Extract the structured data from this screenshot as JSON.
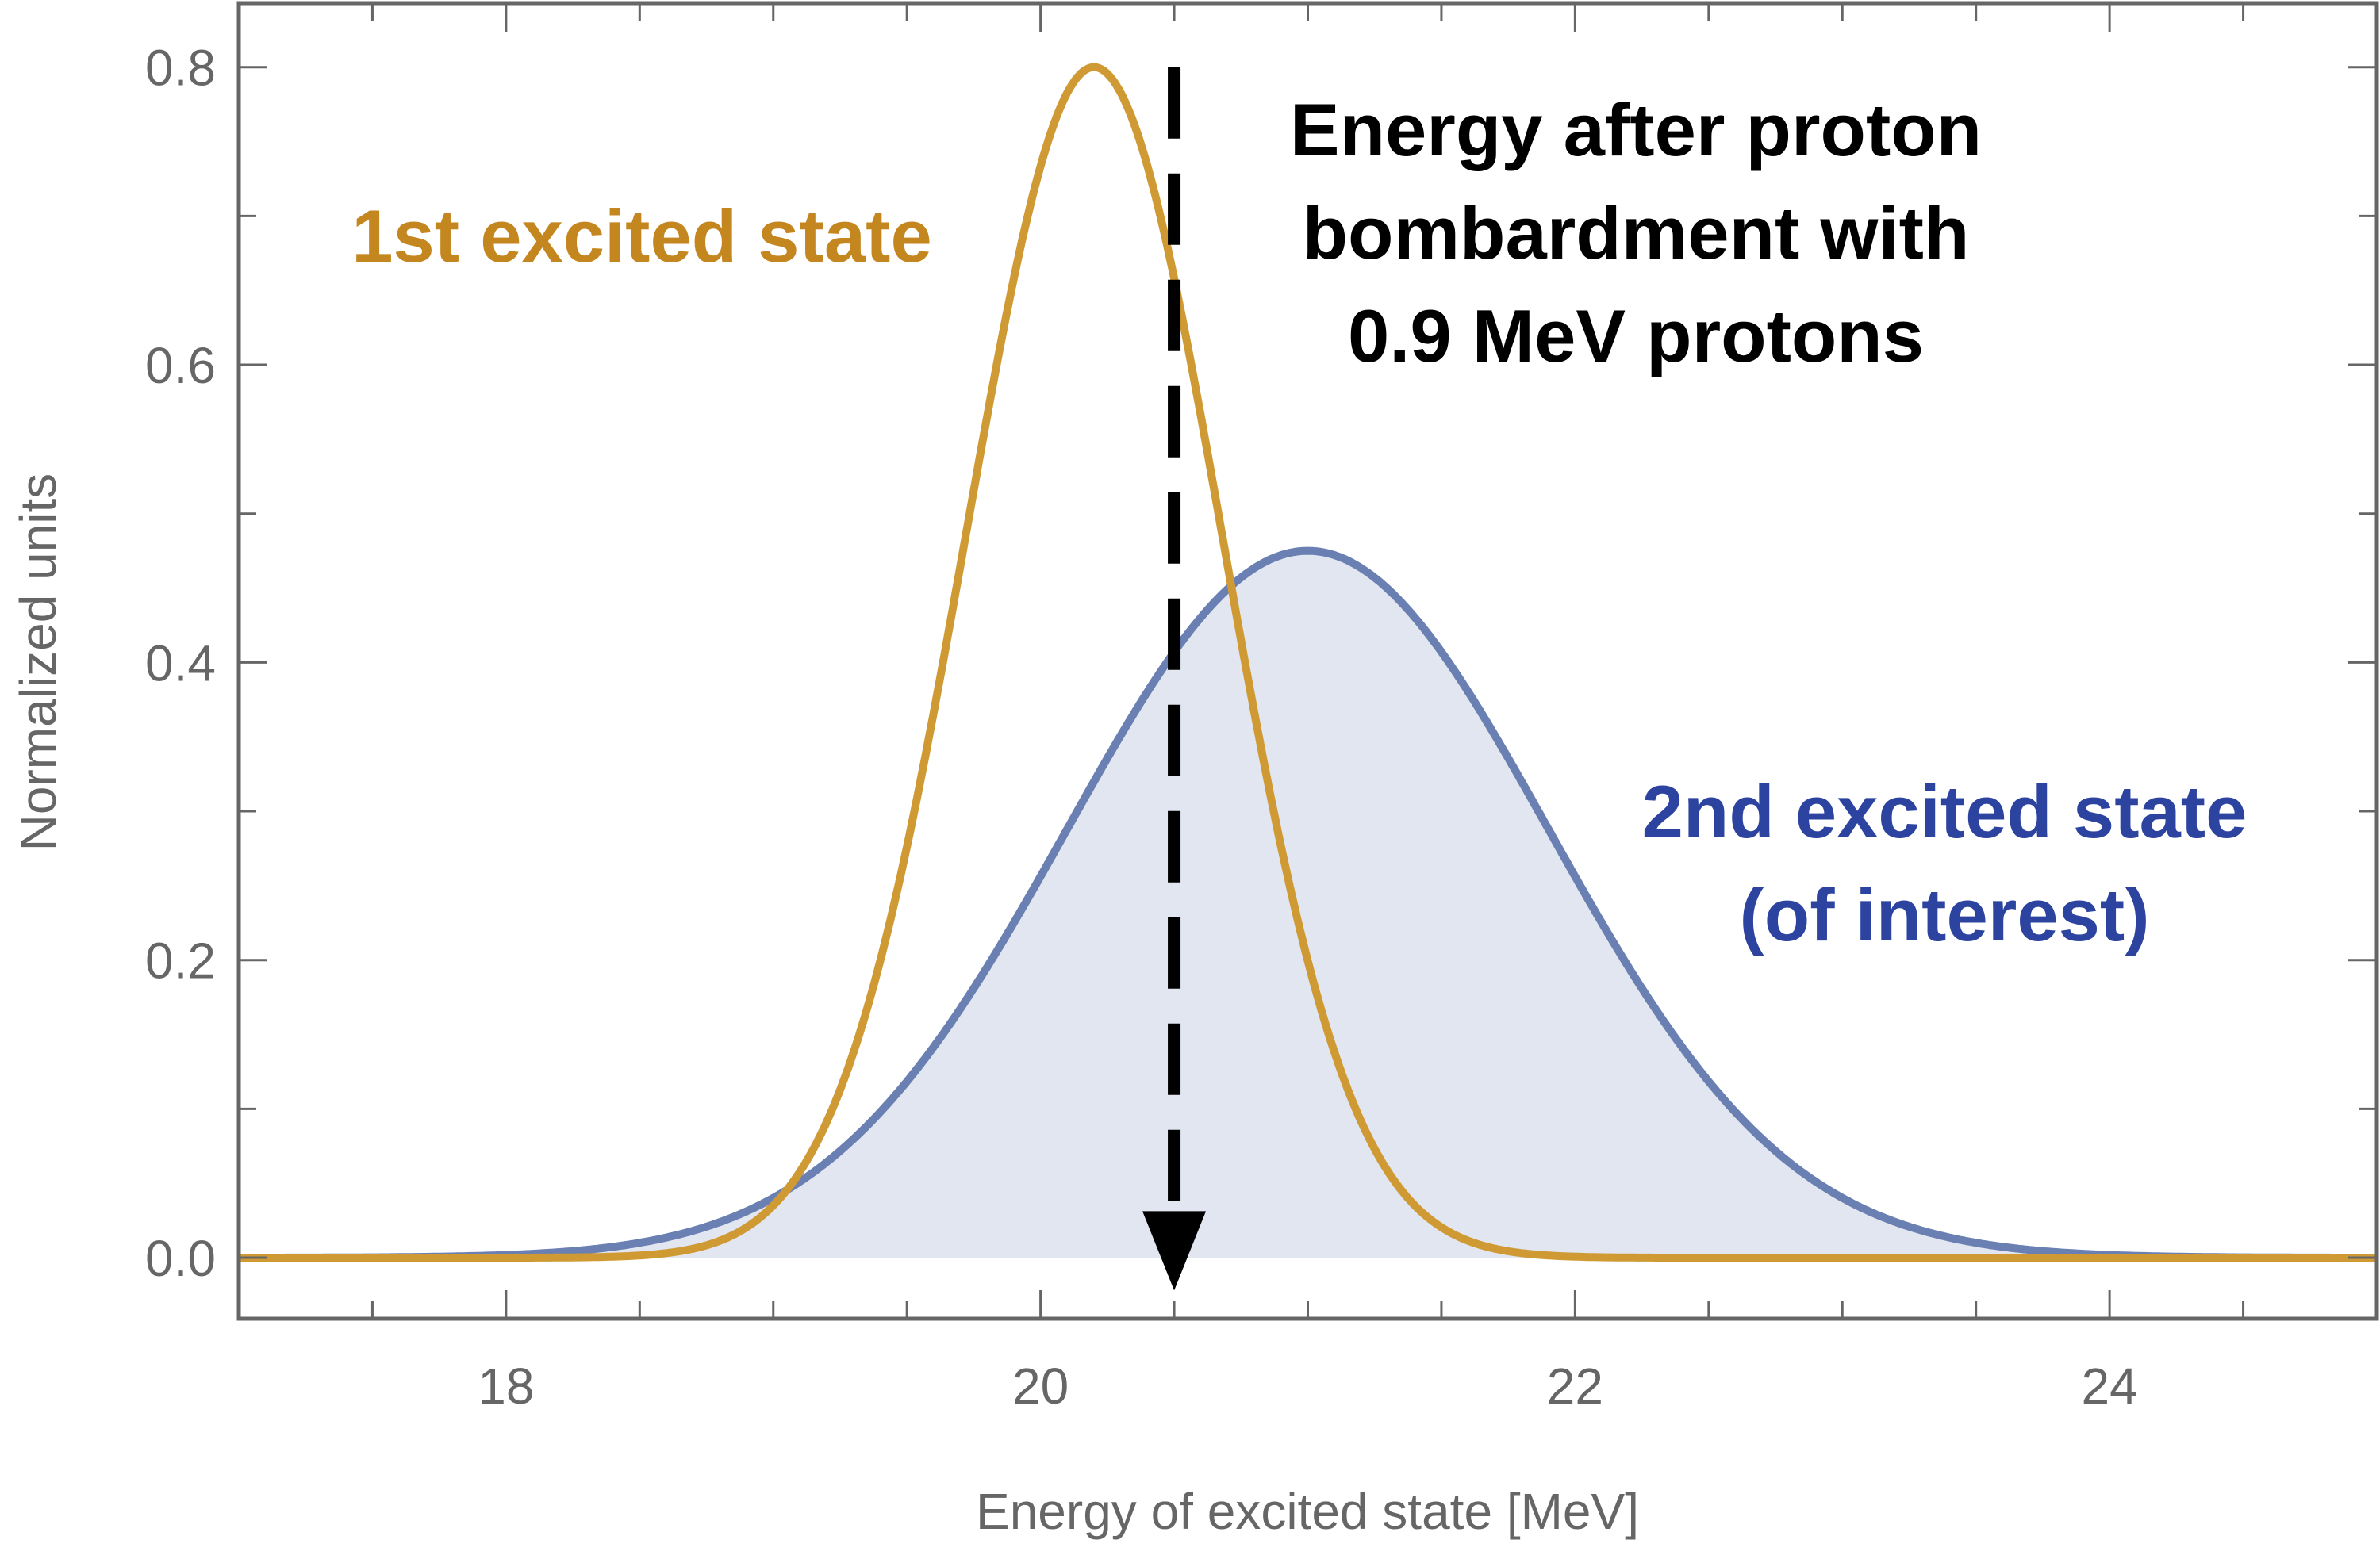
{
  "chart_data": {
    "type": "line",
    "title": "",
    "xlabel": "Energy of excited state [MeV]",
    "ylabel": "Normalized units",
    "xlim": [
      17,
      25
    ],
    "ylim": [
      -0.041,
      0.843
    ],
    "x_ticks": [
      18,
      20,
      22,
      24
    ],
    "x_tick_labels": [
      "18",
      "20",
      "22",
      "24"
    ],
    "y_ticks": [
      0.0,
      0.2,
      0.4,
      0.6,
      0.8
    ],
    "y_tick_labels": [
      "0.0",
      "0.2",
      "0.4",
      "0.6",
      "0.8"
    ],
    "grid": false,
    "legend": "none",
    "series": [
      {
        "name": "1st excited state",
        "shape": "gaussian",
        "center": 20.2,
        "peak": 0.8,
        "sigma": 0.48,
        "color": "#CF9A33",
        "filled": false
      },
      {
        "name": "2nd excited state (of interest)",
        "shape": "gaussian",
        "center": 21.0,
        "peak": 0.475,
        "sigma": 0.9,
        "color": "#6A7FB2",
        "fill_color": "#E1E6F0",
        "filled": true
      }
    ],
    "marker_line": {
      "x": 20.5,
      "style": "dashed-arrow-down",
      "color": "#000000"
    },
    "annotations": {
      "first_state": "1st excited state",
      "proton_energy": [
        "Energy after proton",
        "bombardment with",
        "0.9 MeV protons"
      ],
      "second_state": [
        "2nd excited state",
        "(of interest)"
      ]
    },
    "colors": {
      "first_label": "#C4861E",
      "second_label": "#2C44A0",
      "axis": "#666666"
    }
  }
}
